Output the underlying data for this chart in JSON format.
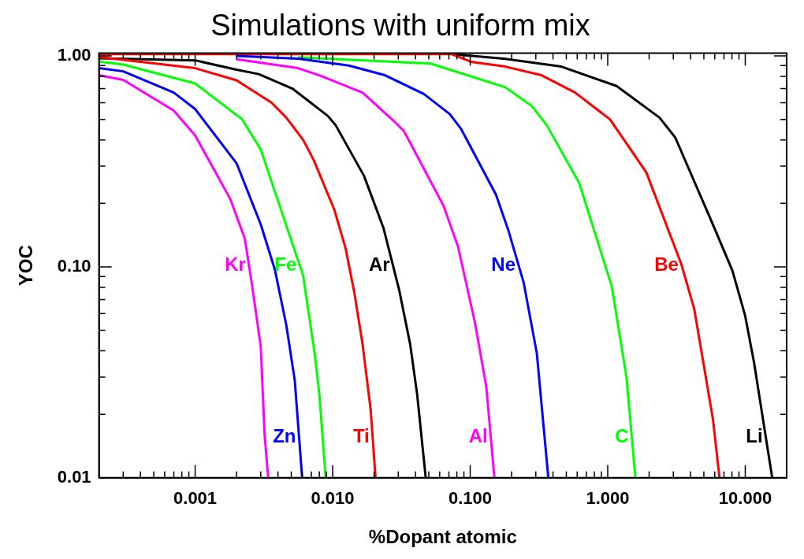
{
  "chart_data": {
    "type": "line",
    "title": "Simulations with uniform mix",
    "xlabel": "%Dopant atomic",
    "ylabel": "YOC",
    "log": "xy",
    "grid": false,
    "legend": false,
    "marker": "none",
    "line_style": "solid",
    "xlim": [
      0.0002,
      20
    ],
    "ylim": [
      0.01,
      1.03
    ],
    "xticks": [
      {
        "value": 0.0002,
        "label": null
      },
      {
        "value": 0.0003,
        "label": null
      },
      {
        "value": 0.0004,
        "label": null
      },
      {
        "value": 0.0005,
        "label": null
      },
      {
        "value": 0.0006,
        "label": null
      },
      {
        "value": 0.0007,
        "label": null
      },
      {
        "value": 0.0008,
        "label": null
      },
      {
        "value": 0.0009,
        "label": null
      },
      {
        "value": 0.001,
        "label": "0.001"
      },
      {
        "value": 0.002,
        "label": null
      },
      {
        "value": 0.003,
        "label": null
      },
      {
        "value": 0.004,
        "label": null
      },
      {
        "value": 0.005,
        "label": null
      },
      {
        "value": 0.006,
        "label": null
      },
      {
        "value": 0.007,
        "label": null
      },
      {
        "value": 0.008,
        "label": null
      },
      {
        "value": 0.009,
        "label": null
      },
      {
        "value": 0.01,
        "label": "0.010"
      },
      {
        "value": 0.02,
        "label": null
      },
      {
        "value": 0.03,
        "label": null
      },
      {
        "value": 0.04,
        "label": null
      },
      {
        "value": 0.05,
        "label": null
      },
      {
        "value": 0.06,
        "label": null
      },
      {
        "value": 0.07,
        "label": null
      },
      {
        "value": 0.08,
        "label": null
      },
      {
        "value": 0.09,
        "label": null
      },
      {
        "value": 0.1,
        "label": "0.100"
      },
      {
        "value": 0.2,
        "label": null
      },
      {
        "value": 0.3,
        "label": null
      },
      {
        "value": 0.4,
        "label": null
      },
      {
        "value": 0.5,
        "label": null
      },
      {
        "value": 0.6,
        "label": null
      },
      {
        "value": 0.7,
        "label": null
      },
      {
        "value": 0.8,
        "label": null
      },
      {
        "value": 0.9,
        "label": null
      },
      {
        "value": 1,
        "label": "1.000"
      },
      {
        "value": 2,
        "label": null
      },
      {
        "value": 3,
        "label": null
      },
      {
        "value": 4,
        "label": null
      },
      {
        "value": 5,
        "label": null
      },
      {
        "value": 6,
        "label": null
      },
      {
        "value": 7,
        "label": null
      },
      {
        "value": 8,
        "label": null
      },
      {
        "value": 9,
        "label": null
      },
      {
        "value": 10,
        "label": "10.000"
      },
      {
        "value": 20,
        "label": null
      }
    ],
    "yticks": [
      {
        "value": 0.01,
        "label": "0.01"
      },
      {
        "value": 0.02,
        "label": null
      },
      {
        "value": 0.03,
        "label": null
      },
      {
        "value": 0.04,
        "label": null
      },
      {
        "value": 0.05,
        "label": null
      },
      {
        "value": 0.06,
        "label": null
      },
      {
        "value": 0.07,
        "label": null
      },
      {
        "value": 0.08,
        "label": null
      },
      {
        "value": 0.09,
        "label": null
      },
      {
        "value": 0.1,
        "label": "0.10"
      },
      {
        "value": 0.2,
        "label": null
      },
      {
        "value": 0.3,
        "label": null
      },
      {
        "value": 0.4,
        "label": null
      },
      {
        "value": 0.5,
        "label": null
      },
      {
        "value": 0.6,
        "label": null
      },
      {
        "value": 0.7,
        "label": null
      },
      {
        "value": 0.8,
        "label": null
      },
      {
        "value": 0.9,
        "label": null
      },
      {
        "value": 1,
        "label": "1.00"
      }
    ],
    "series": [
      {
        "name": "Kr",
        "color": "#ff00ff",
        "x": [
          0.0002,
          0.0003,
          0.0007,
          0.001,
          0.0018,
          0.0023,
          0.0026,
          0.003,
          0.0032,
          0.0034
        ],
        "values": [
          0.81,
          0.77,
          0.55,
          0.42,
          0.21,
          0.136,
          0.081,
          0.042,
          0.016,
          0.01
        ]
      },
      {
        "name": "Zn",
        "color": "#0000ff",
        "x": [
          0.0002,
          0.0003,
          0.0007,
          0.001,
          0.002,
          0.003,
          0.0038,
          0.0046,
          0.0053,
          0.006
        ],
        "values": [
          0.875,
          0.845,
          0.67,
          0.56,
          0.31,
          0.159,
          0.097,
          0.053,
          0.029,
          0.01
        ]
      },
      {
        "name": "Fe",
        "color": "#00ff00",
        "x": [
          0.0002,
          0.0003,
          0.001,
          0.0022,
          0.003,
          0.0061,
          0.0074,
          0.008,
          0.0089
        ],
        "values": [
          0.94,
          0.91,
          0.74,
          0.5,
          0.36,
          0.091,
          0.039,
          0.025,
          0.01
        ]
      },
      {
        "name": "Ti",
        "color": "#ff0000",
        "x": [
          0.0002,
          0.001,
          0.002,
          0.0036,
          0.0046,
          0.0061,
          0.0073,
          0.0103,
          0.0124,
          0.0144,
          0.0165,
          0.0189,
          0.0205
        ],
        "values": [
          0.987,
          0.875,
          0.766,
          0.6,
          0.51,
          0.4,
          0.32,
          0.186,
          0.123,
          0.075,
          0.043,
          0.021,
          0.01
        ]
      },
      {
        "name": "Ar",
        "color": "#000000",
        "x": [
          0.0002,
          0.001,
          0.002,
          0.0029,
          0.0051,
          0.0092,
          0.0105,
          0.0169,
          0.0234,
          0.0304,
          0.0366,
          0.0411,
          0.0475
        ],
        "values": [
          0.974,
          0.953,
          0.86,
          0.82,
          0.7,
          0.52,
          0.47,
          0.27,
          0.153,
          0.078,
          0.043,
          0.025,
          0.01
        ]
      },
      {
        "name": "Al",
        "color": "#ff00ff",
        "x": [
          0.002,
          0.0056,
          0.008,
          0.0165,
          0.028,
          0.033,
          0.064,
          0.0815,
          0.108,
          0.131,
          0.15
        ],
        "values": [
          0.965,
          0.875,
          0.81,
          0.67,
          0.49,
          0.44,
          0.195,
          0.125,
          0.055,
          0.027,
          0.01
        ]
      },
      {
        "name": "Ne",
        "color": "#0000ff",
        "x": [
          0.002,
          0.0056,
          0.0131,
          0.024,
          0.046,
          0.071,
          0.086,
          0.154,
          0.19,
          0.245,
          0.305,
          0.37
        ],
        "values": [
          1.0,
          0.97,
          0.9,
          0.81,
          0.66,
          0.53,
          0.45,
          0.22,
          0.148,
          0.084,
          0.039,
          0.01
        ]
      },
      {
        "name": "C",
        "color": "#00ff00",
        "x": [
          0.0056,
          0.0516,
          0.18,
          0.28,
          0.36,
          0.62,
          1.07,
          1.37,
          1.59
        ],
        "values": [
          0.986,
          0.92,
          0.71,
          0.58,
          0.47,
          0.25,
          0.081,
          0.03,
          0.01
        ]
      },
      {
        "name": "Be",
        "color": "#ff0000",
        "x": [
          0.0002,
          0.0735,
          0.103,
          0.18,
          0.33,
          0.58,
          1.04,
          1.91,
          3.43,
          4.26,
          5.82,
          6.5
        ],
        "values": [
          1.02,
          1.02,
          0.935,
          0.89,
          0.81,
          0.67,
          0.5,
          0.28,
          0.103,
          0.063,
          0.019,
          0.01
        ]
      },
      {
        "name": "Li",
        "color": "#000000",
        "x": [
          0.0735,
          0.175,
          0.46,
          1.16,
          2.38,
          3.1,
          5.56,
          8.06,
          9.96,
          11.6,
          15.7
        ],
        "values": [
          1.02,
          0.97,
          0.89,
          0.72,
          0.51,
          0.41,
          0.17,
          0.096,
          0.059,
          0.035,
          0.01
        ]
      }
    ]
  }
}
